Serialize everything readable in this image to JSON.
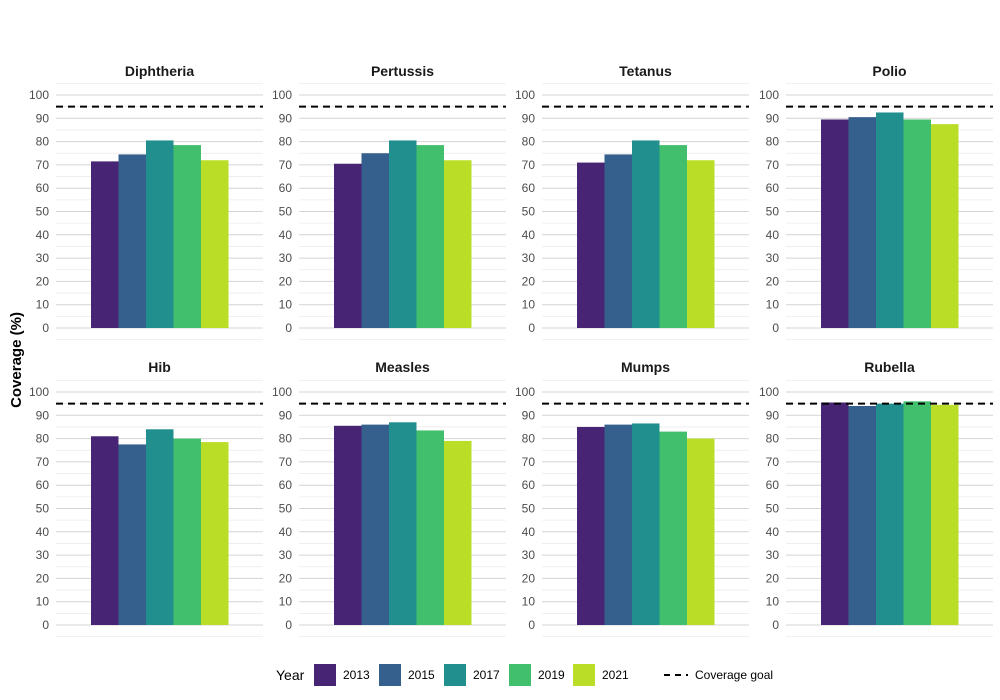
{
  "chart_data": {
    "type": "bar",
    "ylabel": "Coverage (%)",
    "ylim": [
      0,
      100
    ],
    "yticks": [
      0,
      10,
      20,
      30,
      40,
      50,
      60,
      70,
      80,
      90,
      100
    ],
    "grid": true,
    "legend_position": "bottom",
    "legend_title": "Year",
    "years": [
      "2013",
      "2015",
      "2017",
      "2019",
      "2021"
    ],
    "colors": [
      "#472574",
      "#35608d",
      "#218f8d",
      "#42bf6d",
      "#bade28"
    ],
    "goal": {
      "value": 95,
      "label": "Coverage goal"
    },
    "panels": [
      {
        "title": "Diphtheria",
        "values": [
          71.5,
          74.5,
          80.5,
          78.5,
          72
        ]
      },
      {
        "title": "Pertussis",
        "values": [
          70.5,
          75,
          80.5,
          78.5,
          72
        ]
      },
      {
        "title": "Tetanus",
        "values": [
          71,
          74.5,
          80.5,
          78.5,
          72
        ]
      },
      {
        "title": "Polio",
        "values": [
          89.5,
          90.5,
          92.5,
          89.5,
          87.5
        ]
      },
      {
        "title": "Hib",
        "values": [
          81,
          77.5,
          84,
          80,
          78.5
        ]
      },
      {
        "title": "Measles",
        "values": [
          85.5,
          86,
          87,
          83.5,
          79
        ]
      },
      {
        "title": "Mumps",
        "values": [
          85,
          86,
          86.5,
          83,
          80
        ]
      },
      {
        "title": "Rubella",
        "values": [
          95.5,
          94,
          95,
          96,
          94.5
        ]
      }
    ]
  }
}
